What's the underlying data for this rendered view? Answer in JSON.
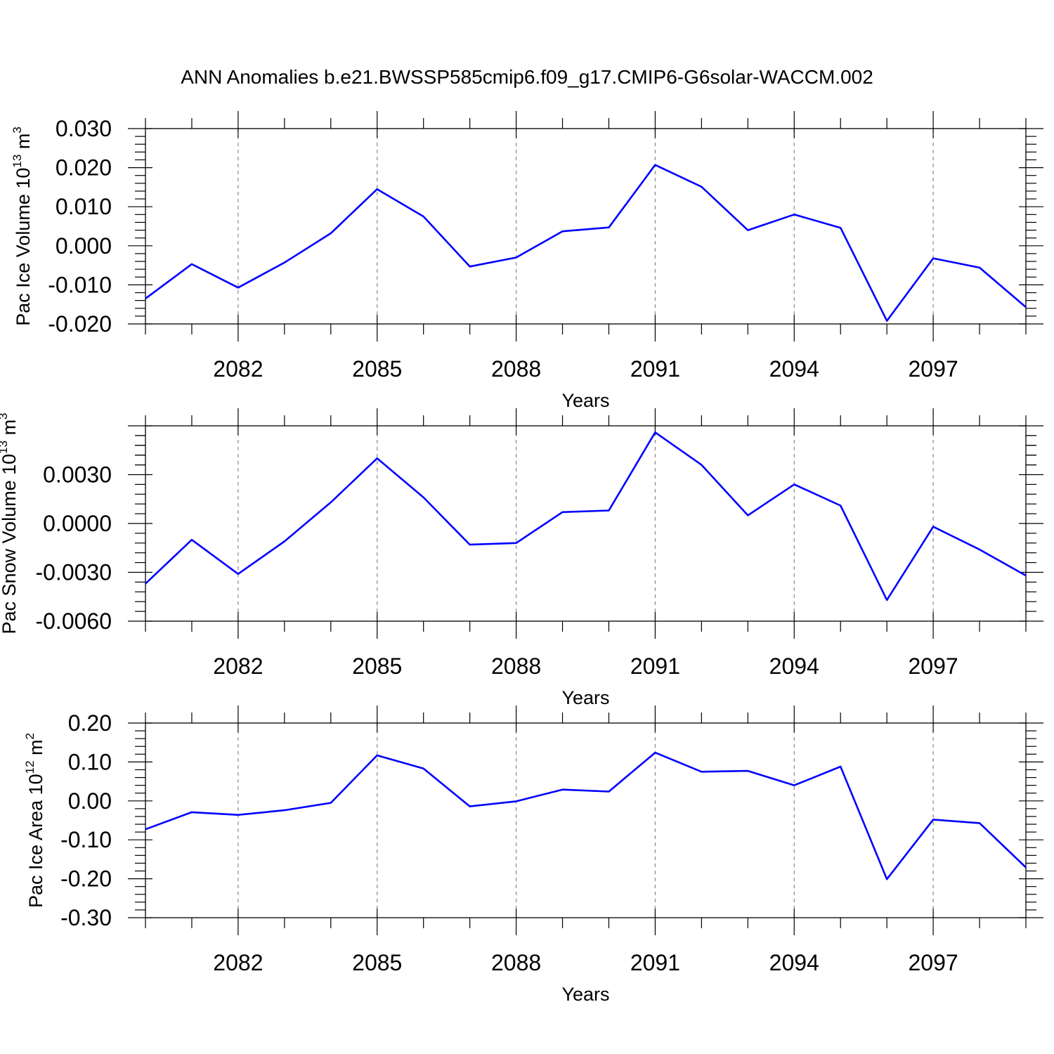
{
  "title": "ANN Anomalies b.e21.BWSSP585cmip6.f09_g17.CMIP6-G6solar-WACCM.002",
  "colors": {
    "series": "#0000ff",
    "grid": "#888888",
    "axes": "#000000"
  },
  "chart_data": [
    {
      "type": "line",
      "ylabel": {
        "base": "Pac Ice Volume 10",
        "exp": "13",
        "unit": " m",
        "unit_exp": "3"
      },
      "xlabel": "Years",
      "xlim": [
        2080,
        2099
      ],
      "ylim": [
        -0.02,
        0.03
      ],
      "x_ticks": [
        2082,
        2085,
        2088,
        2091,
        2094,
        2097
      ],
      "y_ticks": [
        -0.02,
        -0.01,
        0.0,
        0.01,
        0.02,
        0.03
      ],
      "y_tick_labels": [
        "-0.020",
        "-0.010",
        "0.000",
        "0.010",
        "0.020",
        "0.030"
      ],
      "grid": "vertical dashed at major x ticks",
      "x": [
        2080,
        2081,
        2082,
        2083,
        2084,
        2085,
        2086,
        2087,
        2088,
        2089,
        2090,
        2091,
        2092,
        2093,
        2094,
        2095,
        2096,
        2097,
        2098,
        2099
      ],
      "values": [
        -0.0135,
        -0.0047,
        -0.0107,
        -0.0043,
        0.0032,
        0.0145,
        0.0075,
        -0.0053,
        -0.003,
        0.0037,
        0.0047,
        0.0207,
        0.0151,
        0.004,
        0.008,
        0.0046,
        -0.0192,
        -0.0032,
        -0.0056,
        -0.0157
      ]
    },
    {
      "type": "line",
      "ylabel": {
        "base": "Pac Snow Volume 10",
        "exp": "13",
        "unit": " m",
        "unit_exp": "3"
      },
      "xlabel": "Years",
      "xlim": [
        2080,
        2099
      ],
      "ylim": [
        -0.006,
        0.006
      ],
      "x_ticks": [
        2082,
        2085,
        2088,
        2091,
        2094,
        2097
      ],
      "y_ticks": [
        -0.006,
        -0.003,
        0.0,
        0.003
      ],
      "y_tick_labels": [
        "-0.0060",
        "-0.0030",
        "0.0000",
        "0.0030"
      ],
      "grid": "vertical dashed at major x ticks",
      "x": [
        2080,
        2081,
        2082,
        2083,
        2084,
        2085,
        2086,
        2087,
        2088,
        2089,
        2090,
        2091,
        2092,
        2093,
        2094,
        2095,
        2096,
        2097,
        2098,
        2099
      ],
      "values": [
        -0.0037,
        -0.001,
        -0.0031,
        -0.0011,
        0.0013,
        0.004,
        0.0016,
        -0.0013,
        -0.0012,
        0.0007,
        0.0008,
        0.0056,
        0.0036,
        0.0005,
        0.0024,
        0.0011,
        -0.0047,
        -0.0002,
        -0.0016,
        -0.0032
      ]
    },
    {
      "type": "line",
      "ylabel": {
        "base": "Pac Ice Area 10",
        "exp": "12",
        "unit": " m",
        "unit_exp": "2"
      },
      "xlabel": "Years",
      "xlim": [
        2080,
        2099
      ],
      "ylim": [
        -0.3,
        0.2
      ],
      "x_ticks": [
        2082,
        2085,
        2088,
        2091,
        2094,
        2097
      ],
      "y_ticks": [
        -0.3,
        -0.2,
        -0.1,
        0.0,
        0.1,
        0.2
      ],
      "y_tick_labels": [
        "-0.30",
        "-0.20",
        "-0.10",
        "0.00",
        "0.10",
        "0.20"
      ],
      "grid": "vertical dashed at major x ticks",
      "x": [
        2080,
        2081,
        2082,
        2083,
        2084,
        2085,
        2086,
        2087,
        2088,
        2089,
        2090,
        2091,
        2092,
        2093,
        2094,
        2095,
        2096,
        2097,
        2098,
        2099
      ],
      "values": [
        -0.073,
        -0.029,
        -0.036,
        -0.024,
        -0.005,
        0.117,
        0.083,
        -0.014,
        -0.001,
        0.029,
        0.024,
        0.124,
        0.075,
        0.077,
        0.04,
        0.088,
        -0.201,
        -0.048,
        -0.057,
        -0.171
      ]
    }
  ]
}
